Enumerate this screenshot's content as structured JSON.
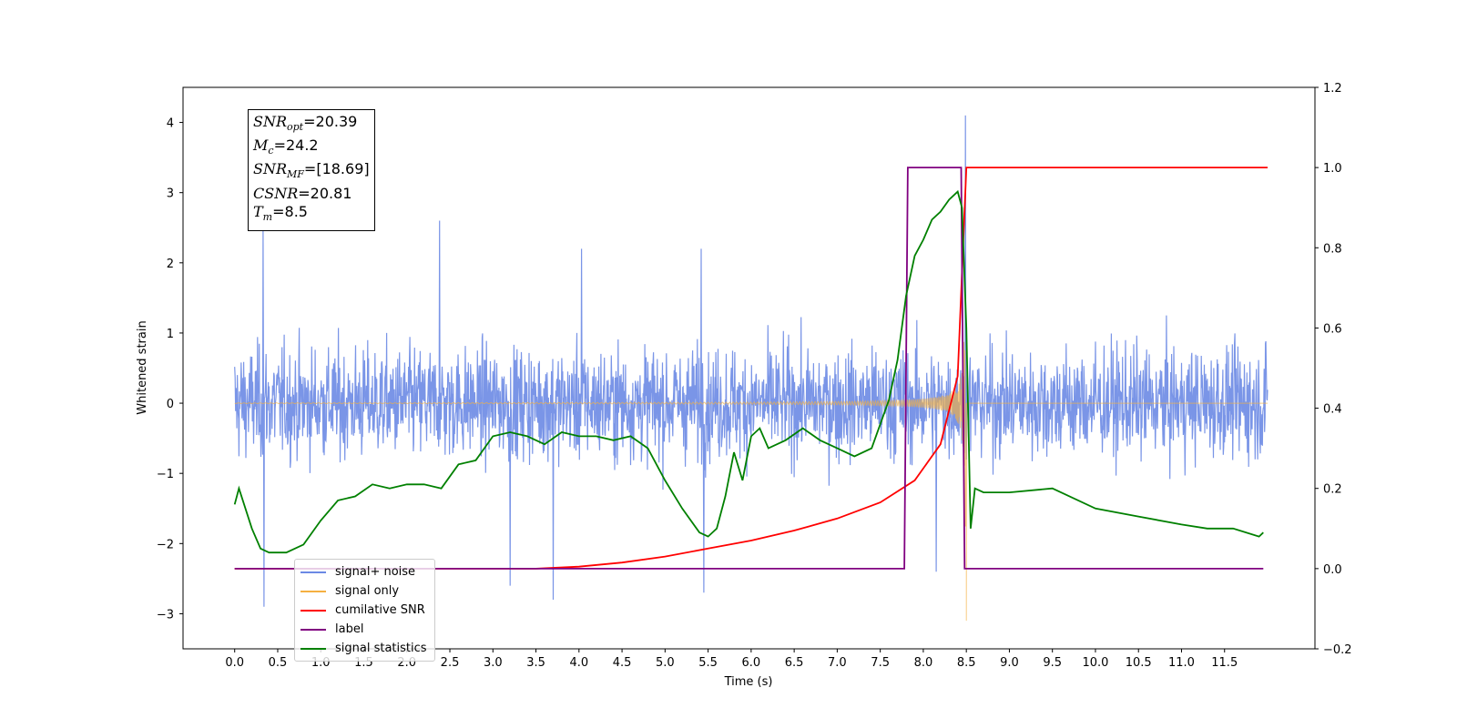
{
  "chart_data": {
    "type": "line",
    "xlabel": "Time (s)",
    "ylabel": "Whitened strain",
    "xlim": [
      -0.6,
      12.55
    ],
    "ylim": [
      -3.5,
      4.5
    ],
    "y2lim": [
      -0.2,
      1.2
    ],
    "grid": false,
    "legend_position": "lower-left",
    "x_ticks": [
      "0.0",
      "0.5",
      "1.0",
      "1.5",
      "2.0",
      "2.5",
      "3.0",
      "3.5",
      "4.0",
      "4.5",
      "5.0",
      "5.5",
      "6.0",
      "6.5",
      "7.0",
      "7.5",
      "8.0",
      "8.5",
      "9.0",
      "9.5",
      "10.0",
      "10.5",
      "11.0",
      "11.5"
    ],
    "y_ticks": [
      "4",
      "3",
      "2",
      "1",
      "0",
      "−1",
      "−2",
      "−3"
    ],
    "y2_ticks": [
      "1.2",
      "1.0",
      "0.8",
      "0.6",
      "0.4",
      "0.2",
      "0.0",
      "−0.2"
    ],
    "series": [
      {
        "name": "signal+ noise",
        "color": "#6b89e4",
        "axis": "left",
        "style": "noise",
        "x_range": [
          0.0,
          12.0
        ],
        "amplitude_typical": 1.2,
        "peaks": [
          [
            0.33,
            2.5
          ],
          [
            0.34,
            -2.9
          ],
          [
            2.38,
            2.6
          ],
          [
            3.2,
            -2.6
          ],
          [
            3.7,
            -2.8
          ],
          [
            4.03,
            2.2
          ],
          [
            5.42,
            2.2
          ],
          [
            5.45,
            -2.7
          ],
          [
            8.15,
            -2.4
          ],
          [
            8.49,
            4.1
          ]
        ]
      },
      {
        "name": "signal only",
        "color": "#f5b041",
        "axis": "left",
        "style": "chirp",
        "x_range": [
          0.0,
          12.0
        ],
        "merger_time": 8.5,
        "peak_amplitude": -3.1
      },
      {
        "name": "cumilative SNR",
        "color": "#ff0000",
        "axis": "right",
        "x": [
          0.0,
          3.5,
          4.0,
          4.5,
          5.0,
          5.5,
          6.0,
          6.5,
          7.0,
          7.5,
          7.9,
          8.2,
          8.4,
          8.5,
          12.0
        ],
        "y": [
          0.0,
          0.0,
          0.005,
          0.015,
          0.03,
          0.05,
          0.07,
          0.095,
          0.125,
          0.165,
          0.22,
          0.31,
          0.48,
          1.0,
          1.0
        ]
      },
      {
        "name": "label",
        "color": "#800080",
        "axis": "right",
        "x": [
          0.0,
          7.78,
          7.82,
          8.44,
          8.48,
          11.95
        ],
        "y": [
          0.0,
          0.0,
          1.0,
          1.0,
          0.0,
          0.0
        ]
      },
      {
        "name": "signal statistics",
        "color": "#008000",
        "axis": "right",
        "x": [
          0.0,
          0.05,
          0.2,
          0.3,
          0.4,
          0.6,
          0.8,
          1.0,
          1.2,
          1.4,
          1.6,
          1.8,
          2.0,
          2.2,
          2.4,
          2.6,
          2.8,
          3.0,
          3.2,
          3.4,
          3.6,
          3.8,
          4.0,
          4.2,
          4.4,
          4.6,
          4.8,
          5.0,
          5.2,
          5.4,
          5.5,
          5.6,
          5.7,
          5.8,
          5.9,
          6.0,
          6.1,
          6.2,
          6.4,
          6.6,
          6.8,
          7.0,
          7.2,
          7.4,
          7.6,
          7.7,
          7.8,
          7.9,
          8.0,
          8.1,
          8.2,
          8.3,
          8.4,
          8.45,
          8.5,
          8.55,
          8.6,
          8.7,
          9.0,
          9.5,
          10.0,
          10.5,
          11.0,
          11.3,
          11.6,
          11.9,
          11.95
        ],
        "y": [
          0.16,
          0.2,
          0.1,
          0.05,
          0.04,
          0.04,
          0.06,
          0.12,
          0.17,
          0.18,
          0.21,
          0.2,
          0.21,
          0.21,
          0.2,
          0.26,
          0.27,
          0.33,
          0.34,
          0.33,
          0.31,
          0.34,
          0.33,
          0.33,
          0.32,
          0.33,
          0.3,
          0.22,
          0.15,
          0.09,
          0.08,
          0.1,
          0.18,
          0.29,
          0.22,
          0.33,
          0.35,
          0.3,
          0.32,
          0.35,
          0.32,
          0.3,
          0.28,
          0.3,
          0.42,
          0.52,
          0.68,
          0.78,
          0.82,
          0.87,
          0.89,
          0.92,
          0.94,
          0.9,
          0.6,
          0.1,
          0.2,
          0.19,
          0.19,
          0.2,
          0.15,
          0.13,
          0.11,
          0.1,
          0.1,
          0.08,
          0.09
        ]
      }
    ]
  },
  "info_box": {
    "snr_opt_base": "SNR",
    "snr_opt_sub": "opt",
    "snr_opt_value": "=20.39",
    "mc_base": "M",
    "mc_sub": "c",
    "mc_value": "=24.2",
    "snr_mf_base": "SNR",
    "snr_mf_sub": "MF",
    "snr_mf_value": "=[18.69]",
    "csnr_base": "CSNR",
    "csnr_value": "=20.81",
    "tm_base": "T",
    "tm_sub": "m",
    "tm_value": "=8.5"
  },
  "legend": {
    "items": [
      {
        "label": "signal+ noise",
        "color": "#6b89e4"
      },
      {
        "label": "signal only",
        "color": "#f5b041"
      },
      {
        "label": "cumilative SNR",
        "color": "#ff0000"
      },
      {
        "label": "label",
        "color": "#800080"
      },
      {
        "label": "signal statistics",
        "color": "#008000"
      }
    ]
  }
}
